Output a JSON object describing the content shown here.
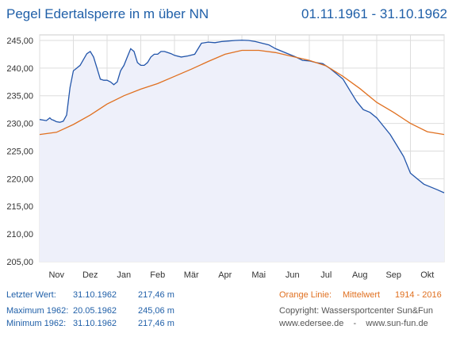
{
  "title": "Pegel Edertalsperre in m über NN",
  "period": "01.11.1961 - 31.10.1962",
  "chart_data": {
    "type": "line",
    "y_ticks": [
      "245,00",
      "240,00",
      "235,00",
      "230,00",
      "225,00",
      "220,00",
      "215,00",
      "210,00",
      "205,00"
    ],
    "ylim": [
      205,
      246
    ],
    "x_ticks": [
      "Nov",
      "Dez",
      "Jan",
      "Feb",
      "Mär",
      "Apr",
      "Mai",
      "Jun",
      "Jul",
      "Aug",
      "Sep",
      "Okt"
    ],
    "x_range_months": [
      0,
      12
    ],
    "grid": true,
    "series": [
      {
        "color": "#2255aa",
        "x": [
          0,
          0.1,
          0.2,
          0.3,
          0.35,
          0.4,
          0.5,
          0.6,
          0.7,
          0.8,
          0.9,
          1.0,
          1.1,
          1.2,
          1.4,
          1.5,
          1.6,
          1.7,
          1.8,
          1.9,
          2.0,
          2.1,
          2.2,
          2.3,
          2.4,
          2.5,
          2.6,
          2.7,
          2.8,
          2.9,
          3.0,
          3.1,
          3.2,
          3.3,
          3.4,
          3.5,
          3.6,
          3.7,
          3.8,
          3.9,
          4.0,
          4.2,
          4.4,
          4.6,
          4.8,
          5.0,
          5.2,
          5.4,
          5.6,
          5.8,
          6.0,
          6.2,
          6.4,
          6.6,
          6.8,
          7.0,
          7.2,
          7.4,
          7.6,
          7.8,
          8.0,
          8.2,
          8.4,
          8.6,
          8.8,
          9.0,
          9.2,
          9.4,
          9.6,
          9.8,
          10.0,
          10.2,
          10.4,
          10.6,
          10.8,
          11.0,
          11.2,
          11.4,
          11.6,
          11.8,
          12.0
        ],
        "values": [
          230.7,
          230.6,
          230.5,
          231.0,
          230.7,
          230.6,
          230.3,
          230.2,
          230.4,
          231.5,
          236.5,
          239.5,
          240.0,
          240.5,
          242.6,
          243.0,
          242.0,
          240.0,
          238.0,
          237.8,
          237.8,
          237.5,
          237.0,
          237.5,
          239.5,
          240.5,
          242.0,
          243.5,
          243.0,
          241.0,
          240.5,
          240.5,
          241.0,
          242.0,
          242.5,
          242.5,
          243.0,
          243.0,
          242.8,
          242.6,
          242.3,
          242.0,
          242.2,
          242.5,
          244.5,
          244.7,
          244.6,
          244.8,
          244.9,
          245.0,
          245.06,
          245.0,
          244.8,
          244.5,
          244.2,
          243.5,
          243.0,
          242.5,
          242.0,
          241.4,
          241.3,
          241.0,
          240.8,
          240.0,
          239.0,
          238.0,
          236.0,
          234.0,
          232.5,
          232.0,
          231.0,
          229.5,
          228.0,
          226.0,
          224.0,
          221.0,
          220.0,
          219.0,
          218.5,
          218.0,
          217.46
        ]
      },
      {
        "color": "#e07020",
        "x": [
          0,
          0.5,
          1,
          1.5,
          2,
          2.5,
          3,
          3.5,
          4,
          4.5,
          5,
          5.5,
          6,
          6.5,
          7,
          7.5,
          8,
          8.5,
          9,
          9.5,
          10,
          10.5,
          11,
          11.5,
          12
        ],
        "values": [
          228.0,
          228.4,
          229.8,
          231.5,
          233.5,
          235.0,
          236.2,
          237.2,
          238.5,
          239.8,
          241.2,
          242.5,
          243.2,
          243.2,
          242.8,
          242.1,
          241.4,
          240.4,
          238.5,
          236.3,
          233.8,
          232.0,
          230.0,
          228.5,
          228.0
        ]
      }
    ]
  },
  "info": {
    "last_label": "Letzter Wert:",
    "last_date": "31.10.1962",
    "last_value": "217,46 m",
    "max_label": "Maximum 1962:",
    "max_date": "20.05.1962",
    "max_value": "245,06 m",
    "min_label": "Minimum  1962:",
    "min_date": "31.10.1962",
    "min_value": "217,46 m"
  },
  "legend": {
    "line_label": "Orange Linie:",
    "mean_label": "Mittelwert",
    "mean_years": "1914 - 2016"
  },
  "copyright": {
    "line1": "Copyright: Wassersportcenter Sun&Fun",
    "line2": "www.edersee.de    -    www.sun-fun.de"
  },
  "colors": {
    "accent": "#1f5fa8",
    "mean_line": "#e07020",
    "level_line": "#2255aa",
    "fill": "#eef0fa"
  }
}
